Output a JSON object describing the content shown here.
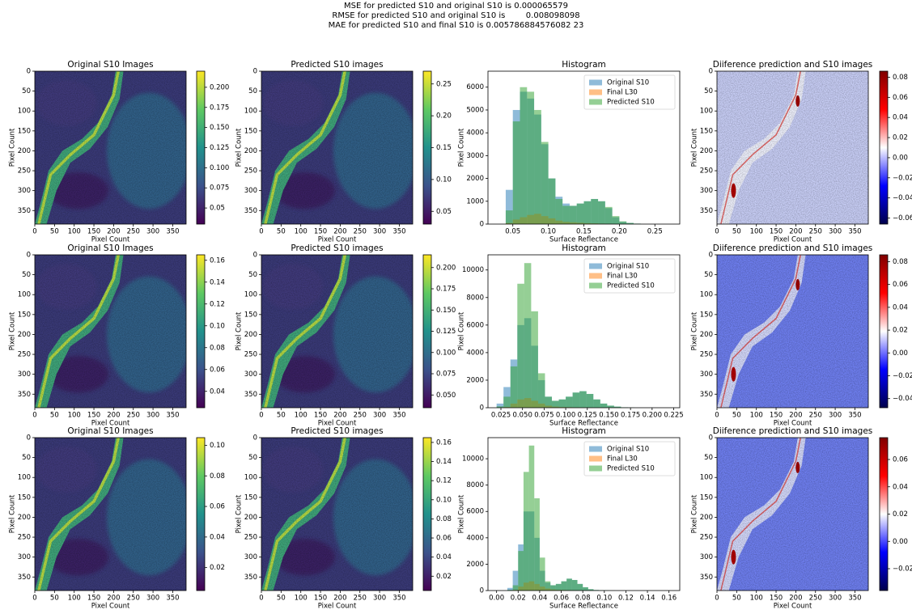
{
  "header": {
    "lines": [
      "MSE for predicted S10 and original S10 is 0.000065579",
      "RMSE for predicted S10 and original S10 is        0.008098098",
      "MAE for predicted S10 and final S10 is 0.005786884576082 23"
    ]
  },
  "chart_data": [
    {
      "type": "image",
      "title": "Original S10 Images",
      "xlabel": "Pixel Count",
      "ylabel": "Pixel Count",
      "xlim": [
        0,
        384
      ],
      "ylim": [
        384,
        0
      ],
      "xticks": [
        0,
        50,
        100,
        150,
        200,
        250,
        300,
        350
      ],
      "yticks": [
        0,
        50,
        100,
        150,
        200,
        250,
        300,
        350
      ],
      "colormap": "viridis",
      "colorbar": {
        "lim": [
          0.03,
          0.22
        ],
        "ticks": [
          0.05,
          0.075,
          {
            "value": 0.1,
            "label": "0.100"
          },
          0.125,
          {
            "value": 0.15,
            "label": "0.150"
          },
          0.175,
          {
            "value": 0.2,
            "label": "0.200"
          }
        ]
      }
    },
    {
      "type": "image",
      "title": "Predicted S10 images",
      "xlabel": "Pixel Count",
      "ylabel": "Pixel Count",
      "xlim": [
        0,
        384
      ],
      "ylim": [
        384,
        0
      ],
      "xticks": [
        0,
        50,
        100,
        150,
        200,
        250,
        300,
        350
      ],
      "yticks": [
        0,
        50,
        100,
        150,
        200,
        250,
        300,
        350
      ],
      "colormap": "viridis",
      "colorbar": {
        "lim": [
          0.03,
          0.27
        ],
        "ticks": [
          0.05,
          {
            "value": 0.1,
            "label": "0.10"
          },
          0.15,
          {
            "value": 0.2,
            "label": "0.20"
          },
          0.25
        ]
      }
    },
    {
      "type": "histogram",
      "title": "Histogram",
      "xlabel": "Surface Reflectance",
      "ylabel": "Pixel Count",
      "legend": "upper right",
      "xlim": [
        0.015,
        0.285
      ],
      "ylim": [
        0,
        6700
      ],
      "xticks": [
        0.05,
        {
          "value": 0.1,
          "label": "0.10"
        },
        0.15,
        {
          "value": 0.2,
          "label": "0.20"
        },
        0.25
      ],
      "yticks": [
        0,
        1000,
        2000,
        3000,
        4000,
        5000,
        6000
      ],
      "bins": [
        0.03,
        0.04,
        0.05,
        0.06,
        0.07,
        0.08,
        0.09,
        0.1,
        0.11,
        0.12,
        0.13,
        0.14,
        0.15,
        0.16,
        0.17,
        0.18,
        0.19,
        0.2,
        0.21,
        0.22,
        0.23
      ],
      "series": [
        {
          "name": "Original S10",
          "color": "#1f77b4",
          "values": [
            0,
            1500,
            5000,
            5800,
            5500,
            4800,
            3500,
            2000,
            1200,
            900,
            800,
            900,
            1000,
            1100,
            1000,
            700,
            300,
            100,
            50,
            20
          ]
        },
        {
          "name": "Final L30",
          "color": "#ff7f0e",
          "values": [
            0,
            50,
            200,
            300,
            400,
            450,
            350,
            250,
            150,
            100,
            80,
            60,
            40,
            30,
            20,
            10,
            5,
            0,
            0,
            0
          ]
        },
        {
          "name": "Predicted S10",
          "color": "#2ca02c",
          "values": [
            0,
            600,
            4500,
            6000,
            5800,
            5000,
            3600,
            2000,
            1100,
            800,
            800,
            900,
            1000,
            1100,
            1000,
            750,
            350,
            120,
            50,
            20
          ]
        }
      ]
    },
    {
      "type": "image",
      "title": "Diiference prediction and S10 images",
      "xlabel": "Pixel Count",
      "ylabel": "Pixel Count",
      "xlim": [
        0,
        384
      ],
      "ylim": [
        384,
        0
      ],
      "xticks": [
        0,
        50,
        100,
        150,
        200,
        250,
        300,
        350
      ],
      "yticks": [
        0,
        50,
        100,
        150,
        200,
        250,
        300,
        350
      ],
      "colormap": "seismic",
      "colorbar": {
        "lim": [
          -0.066,
          0.086
        ],
        "ticks": [
          {
            "value": -0.06,
            "label": "−0.06"
          },
          {
            "value": -0.04,
            "label": "−0.04"
          },
          {
            "value": -0.02,
            "label": "−0.02"
          },
          {
            "value": 0,
            "label": "0.00"
          },
          0.02,
          0.04,
          0.06,
          0.08
        ]
      }
    },
    {
      "type": "image",
      "title": "Original S10 Images",
      "xlabel": "Pixel Count",
      "ylabel": "Pixel Count",
      "xlim": [
        0,
        384
      ],
      "ylim": [
        384,
        0
      ],
      "xticks": [
        0,
        50,
        100,
        150,
        200,
        250,
        300,
        350
      ],
      "yticks": [
        0,
        50,
        100,
        150,
        200,
        250,
        300,
        350
      ],
      "colormap": "viridis",
      "colorbar": {
        "lim": [
          0.025,
          0.165
        ],
        "ticks": [
          0.04,
          0.06,
          0.08,
          {
            "value": 0.1,
            "label": "0.10"
          },
          0.12,
          0.14,
          0.16
        ]
      }
    },
    {
      "type": "image",
      "title": "Predicted S10 images",
      "xlabel": "Pixel Count",
      "ylabel": "Pixel Count",
      "xlim": [
        0,
        384
      ],
      "ylim": [
        384,
        0
      ],
      "xticks": [
        0,
        50,
        100,
        150,
        200,
        250,
        300,
        350
      ],
      "yticks": [
        0,
        50,
        100,
        150,
        200,
        250,
        300,
        350
      ],
      "colormap": "viridis",
      "colorbar": {
        "lim": [
          0.035,
          0.215
        ],
        "ticks": [
          {
            "value": 0.05,
            "label": "0.050"
          },
          0.075,
          {
            "value": 0.1,
            "label": "0.100"
          },
          0.125,
          {
            "value": 0.15,
            "label": "0.150"
          },
          0.175,
          {
            "value": 0.2,
            "label": "0.200"
          }
        ]
      }
    },
    {
      "type": "histogram",
      "title": "Histogram",
      "xlabel": "Surface Reflectance",
      "ylabel": "Pixel Count",
      "legend": "upper right",
      "xlim": [
        0.01,
        0.232
      ],
      "ylim": [
        0,
        11100
      ],
      "xticks": [
        0.025,
        {
          "value": 0.05,
          "label": "0.050"
        },
        0.075,
        {
          "value": 0.1,
          "label": "0.100"
        },
        0.125,
        {
          "value": 0.15,
          "label": "0.150"
        },
        0.175,
        {
          "value": 0.2,
          "label": "0.200"
        },
        0.225
      ],
      "yticks": [
        0,
        2000,
        4000,
        6000,
        8000,
        10000
      ],
      "bins": [
        0.02,
        0.028,
        0.036,
        0.044,
        0.052,
        0.06,
        0.068,
        0.076,
        0.084,
        0.092,
        0.1,
        0.108,
        0.116,
        0.124,
        0.132,
        0.14,
        0.148,
        0.156,
        0.164,
        0.172,
        0.18
      ],
      "series": [
        {
          "name": "Original S10",
          "color": "#1f77b4",
          "values": [
            300,
            1500,
            3500,
            6000,
            6500,
            4500,
            2000,
            800,
            500,
            600,
            800,
            1100,
            1200,
            1000,
            600,
            300,
            150,
            80,
            30,
            10
          ]
        },
        {
          "name": "Final L30",
          "color": "#ff7f0e",
          "values": [
            0,
            50,
            300,
            600,
            700,
            500,
            300,
            150,
            80,
            50,
            40,
            30,
            20,
            10,
            5,
            0,
            0,
            0,
            0,
            0
          ]
        },
        {
          "name": "Predicted S10",
          "color": "#2ca02c",
          "values": [
            100,
            800,
            3000,
            9000,
            10500,
            7000,
            2500,
            800,
            500,
            600,
            800,
            1100,
            1200,
            1000,
            600,
            300,
            150,
            80,
            30,
            10
          ]
        }
      ]
    },
    {
      "type": "image",
      "title": "Diiference prediction and S10 images",
      "xlabel": "Pixel Count",
      "ylabel": "Pixel Count",
      "xlim": [
        0,
        384
      ],
      "ylim": [
        384,
        0
      ],
      "xticks": [
        0,
        50,
        100,
        150,
        200,
        250,
        300,
        350
      ],
      "yticks": [
        0,
        50,
        100,
        150,
        200,
        250,
        300,
        350
      ],
      "colormap": "seismic",
      "colorbar": {
        "lim": [
          -0.048,
          0.086
        ],
        "ticks": [
          {
            "value": -0.04,
            "label": "−0.04"
          },
          {
            "value": -0.02,
            "label": "−0.02"
          },
          {
            "value": 0,
            "label": "0.00"
          },
          0.02,
          0.04,
          0.06,
          0.08
        ]
      }
    },
    {
      "type": "image",
      "title": "Original S10 Images",
      "xlabel": "Pixel Count",
      "ylabel": "Pixel Count",
      "xlim": [
        0,
        384
      ],
      "ylim": [
        384,
        0
      ],
      "xticks": [
        0,
        50,
        100,
        150,
        200,
        250,
        300,
        350
      ],
      "yticks": [
        0,
        50,
        100,
        150,
        200,
        250,
        300,
        350
      ],
      "colormap": "viridis",
      "colorbar": {
        "lim": [
          0.005,
          0.105
        ],
        "ticks": [
          0.02,
          0.04,
          0.06,
          0.08,
          {
            "value": 0.1,
            "label": "0.10"
          }
        ]
      }
    },
    {
      "type": "image",
      "title": "Predicted S10 images",
      "xlabel": "Pixel Count",
      "ylabel": "Pixel Count",
      "xlim": [
        0,
        384
      ],
      "ylim": [
        384,
        0
      ],
      "xticks": [
        0,
        50,
        100,
        150,
        200,
        250,
        300,
        350
      ],
      "yticks": [
        0,
        50,
        100,
        150,
        200,
        250,
        300,
        350
      ],
      "colormap": "viridis",
      "colorbar": {
        "lim": [
          0.005,
          0.165
        ],
        "ticks": [
          0.02,
          0.04,
          0.06,
          0.08,
          {
            "value": 0.1,
            "label": "0.10"
          },
          0.12,
          0.14,
          0.16
        ]
      }
    },
    {
      "type": "histogram",
      "title": "Histogram",
      "xlabel": "Surface Reflectance",
      "ylabel": "Pixel Count",
      "legend": "upper right",
      "xlim": [
        -0.008,
        0.17
      ],
      "ylim": [
        0,
        11600
      ],
      "xticks": [
        {
          "value": 0,
          "label": "0.00"
        },
        0.02,
        0.04,
        0.06,
        0.08,
        {
          "value": 0.1,
          "label": "0.10"
        },
        0.12,
        0.14,
        0.16
      ],
      "yticks": [
        0,
        2000,
        4000,
        6000,
        8000,
        10000
      ],
      "bins": [
        0.01,
        0.015,
        0.02,
        0.025,
        0.03,
        0.035,
        0.04,
        0.045,
        0.05,
        0.055,
        0.06,
        0.065,
        0.07,
        0.075,
        0.08,
        0.085,
        0.09,
        0.095,
        0.1,
        0.105,
        0.11
      ],
      "series": [
        {
          "name": "Original S10",
          "color": "#1f77b4",
          "values": [
            200,
            1500,
            3500,
            6000,
            6000,
            4000,
            1500,
            600,
            400,
            500,
            700,
            900,
            800,
            500,
            250,
            100,
            40,
            20,
            10,
            5
          ]
        },
        {
          "name": "Final L30",
          "color": "#ff7f0e",
          "values": [
            0,
            50,
            300,
            600,
            700,
            500,
            300,
            150,
            80,
            50,
            40,
            30,
            20,
            10,
            5,
            0,
            0,
            0,
            0,
            0
          ]
        },
        {
          "name": "Predicted S10",
          "color": "#2ca02c",
          "values": [
            50,
            400,
            3000,
            9000,
            11000,
            7000,
            2500,
            700,
            400,
            500,
            700,
            900,
            800,
            500,
            250,
            100,
            40,
            20,
            10,
            5
          ]
        }
      ]
    },
    {
      "type": "image",
      "title": "Diiference prediction and S10 images",
      "xlabel": "Pixel Count",
      "ylabel": "Pixel Count",
      "xlim": [
        0,
        384
      ],
      "ylim": [
        384,
        0
      ],
      "xticks": [
        0,
        50,
        100,
        150,
        200,
        250,
        300,
        350
      ],
      "yticks": [
        0,
        50,
        100,
        150,
        200,
        250,
        300,
        350
      ],
      "colormap": "seismic",
      "colorbar": {
        "lim": [
          -0.036,
          0.076
        ],
        "ticks": [
          {
            "value": -0.02,
            "label": "−0.02"
          },
          {
            "value": 0,
            "label": "0.00"
          },
          0.02,
          0.04,
          0.06
        ]
      }
    }
  ]
}
